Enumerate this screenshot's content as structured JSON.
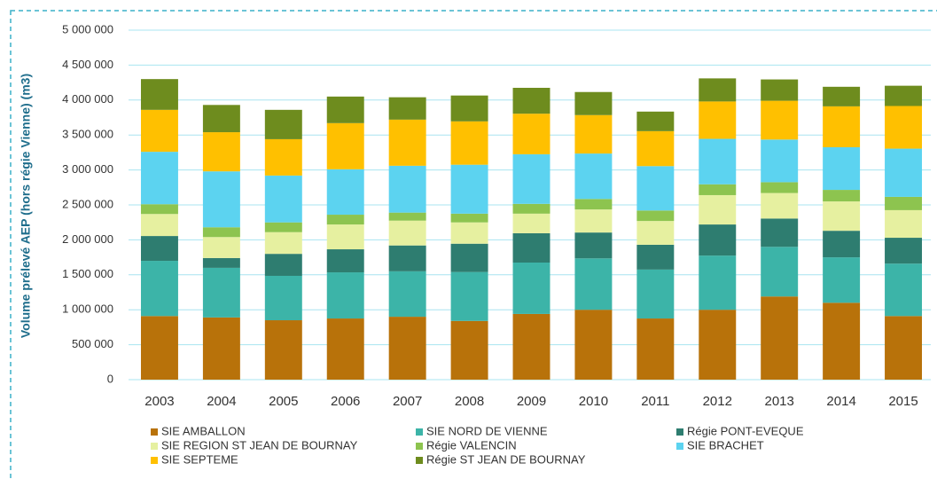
{
  "chart_data": {
    "type": "stacked_bar",
    "y_label": "Volume prélevé AEP (hors régie Vienne)  (m3)",
    "categories": [
      "2003",
      "2004",
      "2005",
      "2006",
      "2007",
      "2008",
      "2009",
      "2010",
      "2011",
      "2012",
      "2013",
      "2014",
      "2015"
    ],
    "series": [
      {
        "name": "SIE AMBALLON",
        "color": "#b8720a",
        "values": [
          910000,
          890000,
          850000,
          875000,
          900000,
          840000,
          940000,
          1000000,
          875000,
          1000000,
          1190000,
          1100000,
          910000
        ]
      },
      {
        "name": "SIE NORD DE VIENNE",
        "color": "#3cb4a8",
        "values": [
          790000,
          710000,
          635000,
          660000,
          650000,
          700000,
          735000,
          735000,
          700000,
          775000,
          710000,
          650000,
          750000
        ]
      },
      {
        "name": "Régie PONT-EVEQUE",
        "color": "#2e7d70",
        "values": [
          355000,
          140000,
          315000,
          330000,
          370000,
          405000,
          420000,
          370000,
          355000,
          445000,
          405000,
          380000,
          370000
        ]
      },
      {
        "name": "SIE REGION ST JEAN DE BOURNAY",
        "color": "#e6f0a0",
        "values": [
          315000,
          300000,
          310000,
          355000,
          355000,
          305000,
          280000,
          330000,
          340000,
          420000,
          365000,
          420000,
          395000
        ]
      },
      {
        "name": "Régie VALENCIN",
        "color": "#8dc44f",
        "values": [
          140000,
          140000,
          140000,
          140000,
          115000,
          125000,
          140000,
          150000,
          150000,
          155000,
          155000,
          165000,
          190000
        ]
      },
      {
        "name": "SIE BRACHET",
        "color": "#5cd3f0",
        "values": [
          750000,
          800000,
          670000,
          650000,
          670000,
          700000,
          710000,
          650000,
          635000,
          650000,
          610000,
          610000,
          690000
        ]
      },
      {
        "name": "SIE SEPTEME",
        "color": "#ffc000",
        "values": [
          600000,
          560000,
          520000,
          660000,
          660000,
          620000,
          580000,
          550000,
          500000,
          535000,
          555000,
          585000,
          610000
        ]
      },
      {
        "name": "Régie ST JEAN DE BOURNAY",
        "color": "#6e8c1e",
        "values": [
          440000,
          390000,
          420000,
          380000,
          320000,
          370000,
          370000,
          330000,
          280000,
          330000,
          305000,
          280000,
          290000
        ]
      }
    ],
    "ylim": [
      0,
      5000000
    ],
    "yticks": [
      0,
      {
        "value": 500000,
        "label": "500 000"
      },
      {
        "value": 1000000,
        "label": "1 000 000"
      },
      {
        "value": 1500000,
        "label": "1 500 000"
      },
      {
        "value": 2000000,
        "label": "2 000 000"
      },
      {
        "value": 2500000,
        "label": "2 500 000"
      },
      {
        "value": 3000000,
        "label": "3 000 000"
      },
      {
        "value": 3500000,
        "label": "3 500 000"
      },
      {
        "value": 4000000,
        "label": "4 000 000"
      },
      {
        "value": 4500000,
        "label": "4 500 000"
      },
      {
        "value": 5000000,
        "label": "5 000 000"
      }
    ],
    "grid": true
  }
}
